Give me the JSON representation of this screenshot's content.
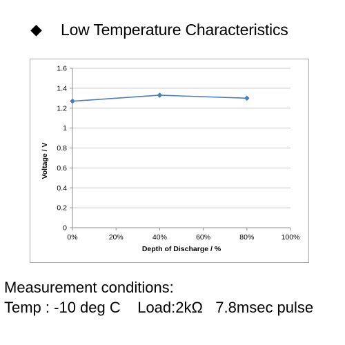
{
  "header": {
    "bullet_glyph": "◆",
    "title": "Low Temperature Characteristics"
  },
  "chart_data": {
    "type": "line",
    "title": "Low Temperature Characteristics",
    "xlabel": "Depth of Discharge / %",
    "ylabel": "Voltage / V",
    "x_ticks": [
      "0%",
      "20%",
      "40%",
      "60%",
      "80%",
      "100%"
    ],
    "y_ticks": [
      "0",
      "0.2",
      "0.4",
      "0.6",
      "0.8",
      "1",
      "1.2",
      "1.4",
      "1.6"
    ],
    "xlim": [
      0,
      100
    ],
    "ylim": [
      0,
      1.6
    ],
    "grid": "horizontal",
    "series": [
      {
        "x": [
          0,
          40,
          80
        ],
        "values": [
          1.27,
          1.33,
          1.3
        ],
        "color": "#4a7ebb"
      }
    ]
  },
  "conditions": {
    "heading": "Measurement conditions:",
    "temp": "Temp : -10 deg C",
    "load": "Load:2kΩ",
    "pulse": "7.8msec pulse"
  }
}
